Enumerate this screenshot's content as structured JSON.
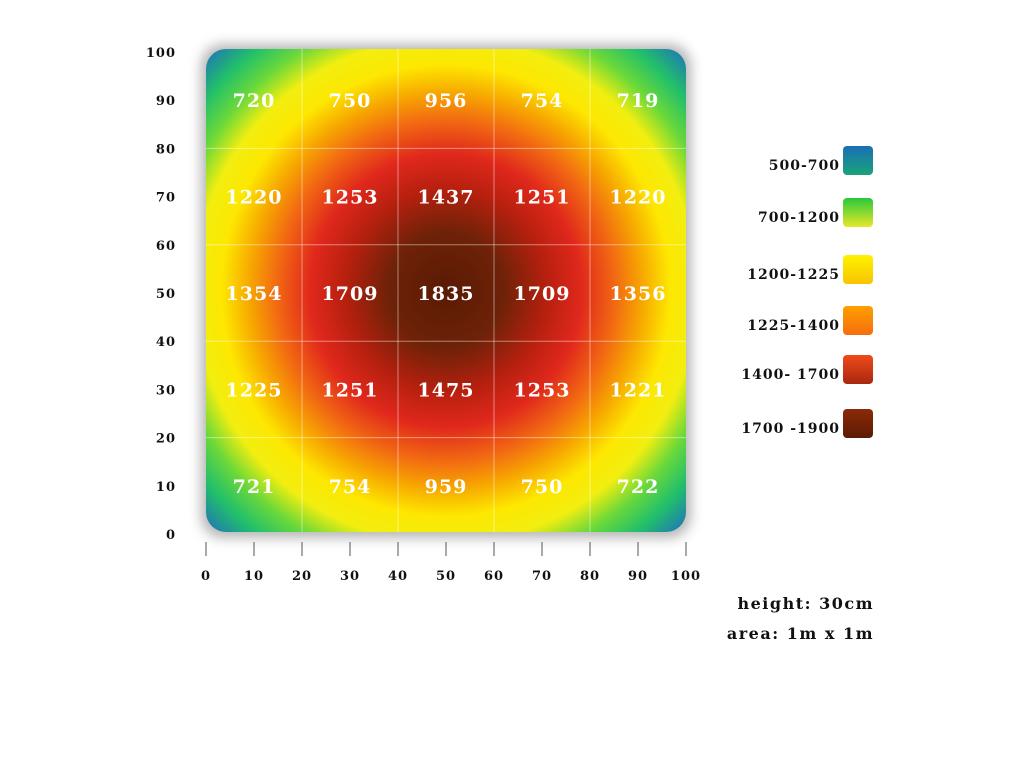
{
  "chart_data": {
    "type": "heatmap",
    "x_ticks": [
      "0",
      "10",
      "20",
      "30",
      "40",
      "50",
      "60",
      "70",
      "80",
      "90",
      "100"
    ],
    "y_ticks": [
      "0",
      "10",
      "20",
      "30",
      "40",
      "50",
      "60",
      "70",
      "80",
      "90",
      "100"
    ],
    "xlim": [
      0,
      100
    ],
    "ylim": [
      0,
      100
    ],
    "grid": true,
    "cells": [
      {
        "x": 10,
        "y": 90,
        "value": "720"
      },
      {
        "x": 30,
        "y": 90,
        "value": "750"
      },
      {
        "x": 50,
        "y": 90,
        "value": "956"
      },
      {
        "x": 70,
        "y": 90,
        "value": "754"
      },
      {
        "x": 90,
        "y": 90,
        "value": "719"
      },
      {
        "x": 10,
        "y": 70,
        "value": "1220"
      },
      {
        "x": 30,
        "y": 70,
        "value": "1253"
      },
      {
        "x": 50,
        "y": 70,
        "value": "1437"
      },
      {
        "x": 70,
        "y": 70,
        "value": "1251"
      },
      {
        "x": 90,
        "y": 70,
        "value": "1220"
      },
      {
        "x": 10,
        "y": 50,
        "value": "1354"
      },
      {
        "x": 30,
        "y": 50,
        "value": "1709"
      },
      {
        "x": 50,
        "y": 50,
        "value": "1835"
      },
      {
        "x": 70,
        "y": 50,
        "value": "1709"
      },
      {
        "x": 90,
        "y": 50,
        "value": "1356"
      },
      {
        "x": 10,
        "y": 30,
        "value": "1225"
      },
      {
        "x": 30,
        "y": 30,
        "value": "1251"
      },
      {
        "x": 50,
        "y": 30,
        "value": "1475"
      },
      {
        "x": 70,
        "y": 30,
        "value": "1253"
      },
      {
        "x": 90,
        "y": 30,
        "value": "1221"
      },
      {
        "x": 10,
        "y": 10,
        "value": "721"
      },
      {
        "x": 30,
        "y": 10,
        "value": "754"
      },
      {
        "x": 50,
        "y": 10,
        "value": "959"
      },
      {
        "x": 70,
        "y": 10,
        "value": "750"
      },
      {
        "x": 90,
        "y": 10,
        "value": "722"
      }
    ],
    "legend": {
      "placement": "right",
      "entries": [
        {
          "label": "500-700",
          "color_top": "#1a6fb5",
          "color_bottom": "#1aa37a"
        },
        {
          "label": "700-1200",
          "color_top": "#28c83c",
          "color_bottom": "#e8e828"
        },
        {
          "label": "1200-1225",
          "color_top": "#fff200",
          "color_bottom": "#f7c400"
        },
        {
          "label": "1225-1400",
          "color_top": "#ffa000",
          "color_bottom": "#f56d10"
        },
        {
          "label": "1400- 1700",
          "color_top": "#f04a18",
          "color_bottom": "#a82810"
        },
        {
          "label": "1700 -1900",
          "color_top": "#8a2a08",
          "color_bottom": "#5e1a04"
        }
      ]
    },
    "notes": {
      "height": "height: 30cm",
      "area": "area: 1m x 1m"
    }
  }
}
